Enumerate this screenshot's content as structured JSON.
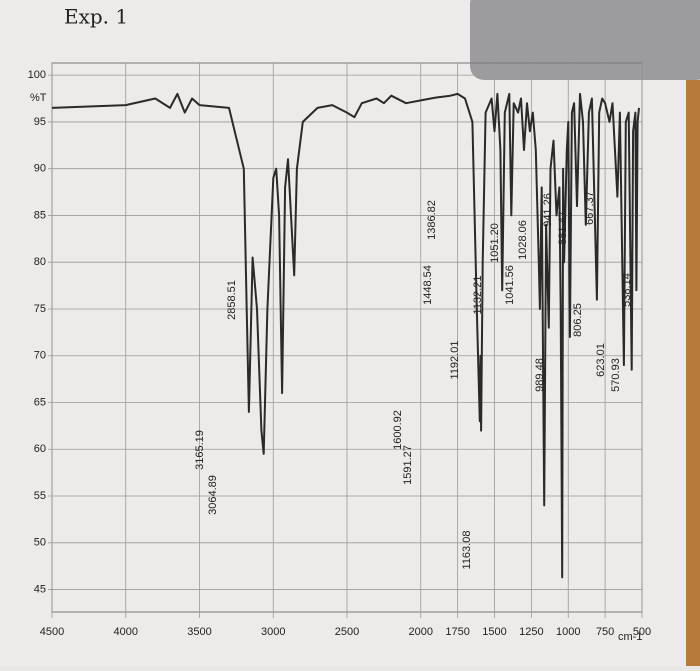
{
  "chart_data": {
    "type": "line",
    "title": "Exp. 1",
    "y_label": "%T",
    "x_label": "cm-1",
    "color": "#2a2a2a",
    "grid": true,
    "xlim": [
      4500,
      500
    ],
    "ylim": [
      42.6,
      101.3
    ],
    "xticks": [
      4500,
      4000,
      3500,
      3000,
      2500,
      2000,
      1750,
      1500,
      1250,
      1000,
      750,
      500
    ],
    "yticks": [
      45,
      50,
      55,
      60,
      65,
      70,
      75,
      80,
      85,
      90,
      95,
      100
    ],
    "x": [
      4500,
      4000,
      3800,
      3700,
      3650,
      3600,
      3550,
      3500,
      3300,
      3200,
      3180,
      3165,
      3140,
      3110,
      3080,
      3065,
      3040,
      3000,
      2980,
      2960,
      2940,
      2920,
      2900,
      2880,
      2858,
      2840,
      2800,
      2700,
      2600,
      2500,
      2450,
      2400,
      2300,
      2250,
      2200,
      2100,
      2000,
      1900,
      1800,
      1750,
      1700,
      1650,
      1620,
      1600,
      1595,
      1591,
      1580,
      1560,
      1520,
      1500,
      1480,
      1460,
      1448,
      1430,
      1400,
      1386,
      1370,
      1340,
      1320,
      1300,
      1280,
      1260,
      1240,
      1220,
      1200,
      1192,
      1180,
      1163,
      1150,
      1132,
      1120,
      1100,
      1080,
      1060,
      1051,
      1041,
      1035,
      1028,
      1010,
      1000,
      989,
      975,
      960,
      941,
      920,
      900,
      881,
      860,
      840,
      806,
      790,
      770,
      750,
      720,
      700,
      667,
      650,
      623,
      610,
      590,
      570,
      560,
      545,
      538,
      530,
      520
    ],
    "values": [
      96.5,
      96.8,
      97.5,
      96.5,
      98,
      96,
      97.5,
      96.8,
      96.5,
      90,
      75,
      64,
      80.5,
      75,
      62,
      59.5,
      75,
      89,
      90,
      85,
      66,
      88,
      91,
      85,
      78.6,
      90,
      95,
      96.5,
      96.8,
      96,
      95.5,
      97,
      97.5,
      97,
      97.8,
      97,
      97.3,
      97.6,
      97.8,
      98,
      97.5,
      95,
      75,
      63,
      70,
      62,
      80,
      96,
      97.5,
      94,
      98,
      92,
      77,
      96,
      98,
      85,
      97,
      96,
      97.5,
      92,
      97,
      94,
      96,
      92,
      80,
      75,
      88,
      54,
      84,
      73,
      90,
      93,
      85,
      88,
      75,
      46.3,
      90,
      80,
      92,
      95,
      72,
      96,
      97,
      86,
      98,
      95,
      84,
      96,
      97.5,
      76,
      96,
      97.5,
      97,
      95,
      97,
      87,
      96,
      69,
      95,
      96,
      68.5,
      94,
      96,
      77,
      95,
      96.5
    ],
    "annotations": [
      "3165.19",
      "3064.89",
      "2858.51",
      "1600.92",
      "1591.27",
      "1448.54",
      "1386.82",
      "1192.01",
      "1163.08",
      "1132.21",
      "1051.20",
      "1041.56",
      "1028.06",
      "989.48",
      "941.26",
      "881.47",
      "806.25",
      "667.37",
      "623.01",
      "570.93",
      "538.14"
    ]
  }
}
